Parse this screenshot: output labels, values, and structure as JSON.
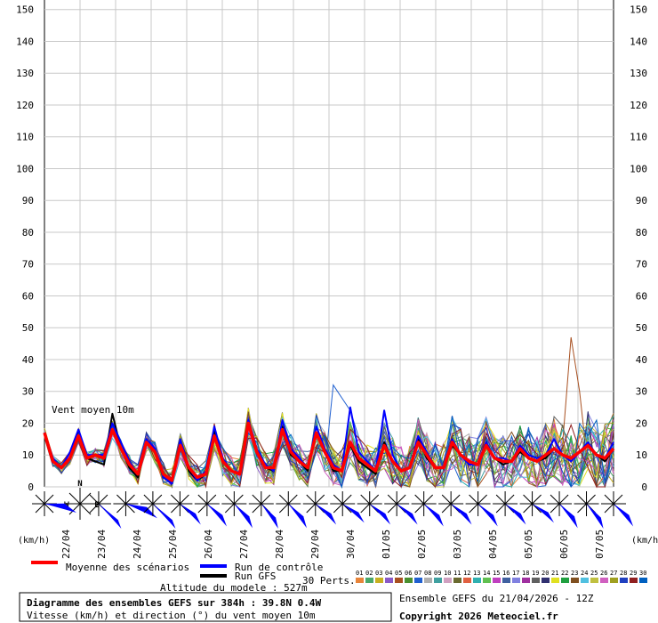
{
  "chart_data": {
    "type": "line",
    "y_ticks": [
      0,
      10,
      20,
      30,
      40,
      50,
      60,
      70,
      80,
      90,
      100,
      110,
      120,
      130,
      140,
      150
    ],
    "ylim": [
      0,
      153
    ],
    "unit_left": "(km/h)",
    "unit_right": "(km/h)",
    "date_labels": [
      "22/04",
      "23/04",
      "24/04",
      "25/04",
      "26/04",
      "27/04",
      "28/04",
      "29/04",
      "30/04",
      "01/05",
      "02/05",
      "03/05",
      "04/05",
      "05/05",
      "06/05",
      "07/05"
    ],
    "annotation": "Vent moyen 10m",
    "compass": {
      "n": "N",
      "w": "W",
      "e": "E"
    },
    "step_hours": 6,
    "mean": [
      17,
      8,
      6,
      9,
      16,
      9,
      10,
      9,
      18,
      12,
      7,
      4,
      14,
      11,
      4,
      2,
      13,
      6,
      3,
      4,
      16,
      8,
      5,
      4,
      20,
      11,
      6,
      6,
      18,
      11,
      8,
      6,
      17,
      11,
      6,
      5,
      14,
      9,
      7,
      5,
      13,
      8,
      5,
      6,
      14,
      10,
      6,
      6,
      14,
      10,
      8,
      7,
      13,
      9,
      8,
      8,
      12,
      9,
      8,
      10,
      12,
      10,
      9,
      11,
      13,
      10,
      9,
      12
    ],
    "control": [
      17,
      9,
      6,
      11,
      18,
      10,
      10,
      10,
      20,
      14,
      8,
      4,
      15,
      12,
      3,
      1,
      15,
      6,
      2,
      5,
      19,
      9,
      5,
      4,
      21,
      12,
      7,
      5,
      21,
      12,
      9,
      6,
      19,
      12,
      7,
      5,
      25,
      11,
      8,
      5,
      24,
      10,
      5,
      6,
      16,
      11,
      6,
      6,
      15,
      10,
      7,
      7,
      14,
      9,
      9,
      8,
      13,
      10,
      9,
      10,
      15,
      10,
      8,
      11,
      14,
      10,
      9,
      14
    ],
    "gfs": [
      17,
      8,
      6,
      9,
      18,
      9,
      8,
      7,
      23,
      12,
      6,
      3,
      14,
      11,
      3,
      1,
      13,
      5,
      2,
      4,
      18,
      8,
      5,
      4,
      20,
      11,
      6,
      5,
      19,
      10,
      8,
      5,
      17,
      11,
      5,
      5,
      13,
      8,
      6,
      4,
      14,
      8,
      5,
      6,
      15,
      9,
      6,
      6,
      13,
      10,
      8,
      7,
      14,
      9,
      7,
      8,
      11,
      9,
      8,
      9,
      12,
      10,
      9,
      11,
      13,
      10,
      8,
      12
    ],
    "perturbations_count": 30,
    "wind_dir_deg": [
      270,
      225,
      315,
      280,
      315,
      300,
      305,
      310,
      315,
      310,
      300,
      295,
      300,
      300,
      305,
      300,
      305,
      300,
      295,
      310,
      315,
      305
    ],
    "legend": {
      "mean": "Moyenne des scénarios",
      "control": "Run de contrôle",
      "gfs": "Run GFS",
      "perts": "30 Perts."
    },
    "pert_colors": [
      "#e8853a",
      "#4aa86a",
      "#c8b020",
      "#8a5ac8",
      "#a85020",
      "#4a9030",
      "#2060d0",
      "#b0b0b0",
      "#40a0a0",
      "#d0a0c0",
      "#6a6a30",
      "#e06040",
      "#30b0b0",
      "#60c050",
      "#c040c0",
      "#4060a0",
      "#8080e0",
      "#a030a0",
      "#606060",
      "#303070",
      "#e0e020",
      "#20a040",
      "#805020",
      "#50c0e0",
      "#c0c040",
      "#d060c0",
      "#a0a020",
      "#2040c0",
      "#902020",
      "#0060c0"
    ],
    "pert_numbers": [
      "01",
      "02",
      "03",
      "04",
      "05",
      "06",
      "07",
      "08",
      "09",
      "10",
      "11",
      "12",
      "13",
      "14",
      "15",
      "16",
      "17",
      "18",
      "19",
      "20",
      "21",
      "22",
      "23",
      "24",
      "25",
      "26",
      "27",
      "28",
      "29",
      "30"
    ]
  },
  "info": {
    "altitude": "Altitude du modele : 527m",
    "title": "Diagramme des ensembles GEFS sur 384h : 39.8N 0.4W",
    "subtitle": "Vitesse (km/h) et direction (°) du vent moyen 10m",
    "run": "Ensemble GEFS du 21/04/2026 - 12Z",
    "copyright": "Copyright 2026 Meteociel.fr"
  }
}
